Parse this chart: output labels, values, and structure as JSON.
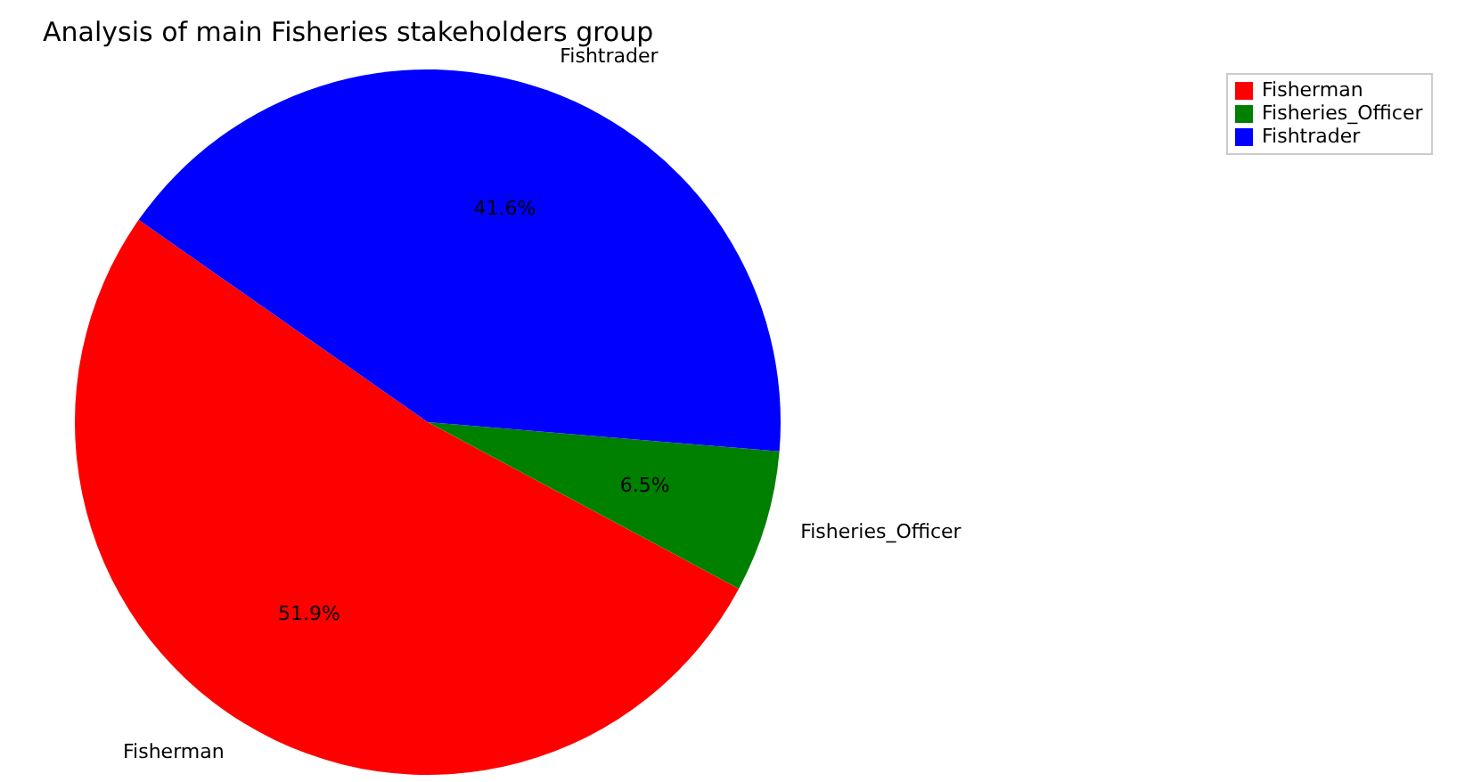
{
  "chart_data": {
    "type": "pie",
    "title": "Analysis of main Fisheries stakeholders group",
    "categories": [
      "Fisherman",
      "Fisheries_Officer",
      "Fishtrader"
    ],
    "values": [
      51.9,
      6.5,
      41.6
    ],
    "value_labels": [
      "51.9%",
      "6.5%",
      "41.6%"
    ],
    "colors": [
      "#ff0000",
      "#008000",
      "#0000ff"
    ],
    "legend": "top right"
  }
}
